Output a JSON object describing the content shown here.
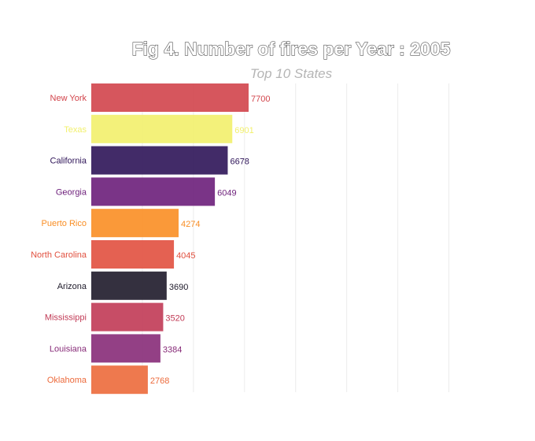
{
  "chart_data": {
    "type": "bar",
    "orientation": "horizontal",
    "title": "Fig 4. Number of fires per Year : 2005",
    "subtitle": "Top 10 States",
    "xlabel": "",
    "ylabel": "",
    "grid": true,
    "categories": [
      "New York",
      "Texas",
      "California",
      "Georgia",
      "Puerto Rico",
      "North Carolina",
      "Arizona",
      "Mississippi",
      "Louisiana",
      "Oklahoma"
    ],
    "values": [
      7700,
      6901,
      6678,
      6049,
      4274,
      4045,
      3690,
      3520,
      3384,
      2768
    ],
    "colors": [
      "#d2444b",
      "#f2f06c",
      "#2e1458",
      "#6c1e7a",
      "#f98e24",
      "#e1503f",
      "#1e1a2a",
      "#c13a55",
      "#872b78",
      "#ec6a3b"
    ],
    "label_colors": [
      "#d2444b",
      "#f2f06c",
      "#2e1458",
      "#6c1e7a",
      "#f98e24",
      "#e1503f",
      "#1e1a2a",
      "#c13a55",
      "#872b78",
      "#ec6a3b"
    ]
  }
}
